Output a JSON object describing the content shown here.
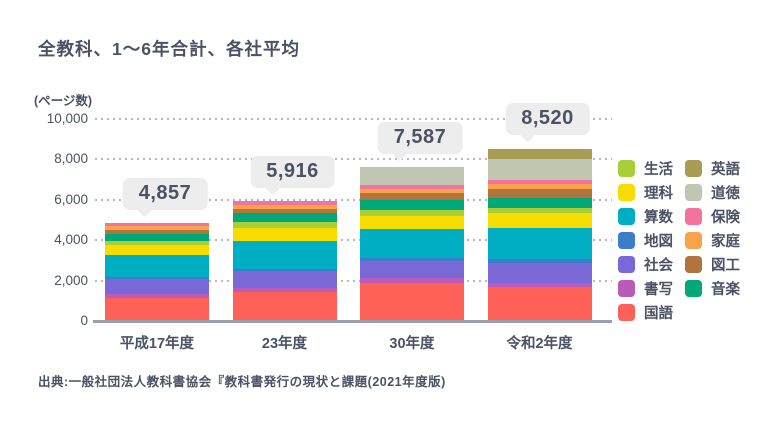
{
  "title": "全教科、1〜6年合計、各社平均",
  "y_axis_unit": "(ページ数)",
  "source": "出典:一般社団法人教科書協会『教科書発行の現状と課題(2021年度版)",
  "colors": {
    "text": "#4a5263",
    "callout_bg": "#ededee",
    "gridline": "#b3bac3",
    "axis_line": "#97a1ac"
  },
  "chart_data": {
    "type": "bar",
    "stacked": true,
    "title": "全教科、1〜6年合計、各社平均",
    "ylabel": "(ページ数)",
    "ylim": [
      0,
      10000
    ],
    "yticks": [
      {
        "value": 0,
        "label": "0"
      },
      {
        "value": 2000,
        "label": "2,000"
      },
      {
        "value": 4000,
        "label": "4,000"
      },
      {
        "value": 6000,
        "label": "6,000"
      },
      {
        "value": 8000,
        "label": "8,000"
      },
      {
        "value": 10000,
        "label": "10,000"
      }
    ],
    "grid": "horizontal-dotted",
    "legend_position": "right",
    "categories": [
      "平成17年度",
      "23年度",
      "30年度",
      "令和2年度"
    ],
    "totals": [
      4857,
      5916,
      7587,
      8520
    ],
    "total_labels": [
      "4,857",
      "5,916",
      "7,587",
      "8,520"
    ],
    "series": [
      {
        "name": "国語",
        "color": "#ff6159",
        "values": [
          1131,
          1426,
          1880,
          1673
        ]
      },
      {
        "name": "書写",
        "color": "#b85cb8",
        "values": [
          198,
          212,
          222,
          227
        ]
      },
      {
        "name": "社会",
        "color": "#7b68d8",
        "values": [
          741,
          825,
          840,
          988
        ]
      },
      {
        "name": "地図",
        "color": "#3d7cc9",
        "values": [
          84,
          84,
          163,
          163
        ]
      },
      {
        "name": "算数",
        "color": "#00aec4",
        "values": [
          1087,
          1398,
          1420,
          1566
        ]
      },
      {
        "name": "理科",
        "color": "#f7dc00",
        "values": [
          494,
          657,
          680,
          741
        ]
      },
      {
        "name": "生活",
        "color": "#a9ce38",
        "values": [
          232,
          296,
          282,
          247
        ]
      },
      {
        "name": "音楽",
        "color": "#00a878",
        "values": [
          346,
          445,
          504,
          494
        ]
      },
      {
        "name": "図工",
        "color": "#b0743c",
        "values": [
          198,
          212,
          346,
          410
        ]
      },
      {
        "name": "家庭",
        "color": "#f9a44a",
        "values": [
          183,
          198,
          198,
          247
        ]
      },
      {
        "name": "保険",
        "color": "#f4729e",
        "values": [
          163,
          163,
          163,
          198
        ]
      },
      {
        "name": "道徳",
        "color": "#c1c6b3",
        "values": [
          0,
          0,
          889,
          1037
        ]
      },
      {
        "name": "英語",
        "color": "#a89d50",
        "values": [
          0,
          0,
          0,
          529
        ]
      }
    ]
  },
  "legend": {
    "left_column": [
      "生活",
      "理科",
      "算数",
      "地図",
      "社会",
      "書写",
      "国語"
    ],
    "right_column": [
      "英語",
      "道徳",
      "保険",
      "家庭",
      "図工",
      "音楽"
    ]
  }
}
